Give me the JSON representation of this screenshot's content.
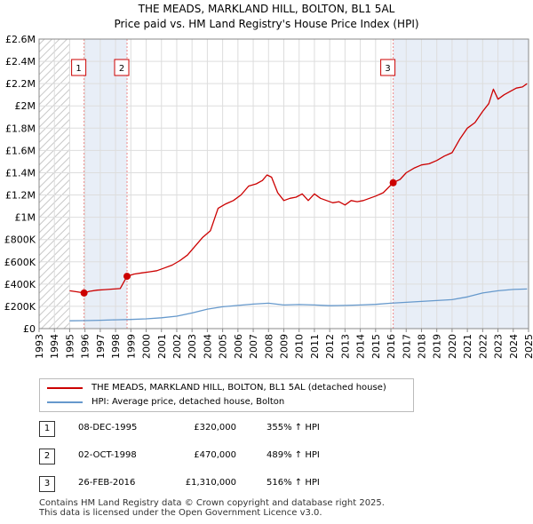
{
  "title_line1": "THE MEADS, MARKLAND HILL, BOLTON, BL1 5AL",
  "title_line2": "Price paid vs. HM Land Registry's House Price Index (HPI)",
  "legend": {
    "property_label": "THE MEADS, MARKLAND HILL, BOLTON, BL1 5AL (detached house)",
    "hpi_label": "HPI: Average price, detached house, Bolton"
  },
  "colors": {
    "property": "#cc0000",
    "hpi": "#6699cc",
    "shade": "#e8eef7",
    "hatch": "#c8c8c8"
  },
  "sales": [
    {
      "num": "1",
      "date": "08-DEC-1995",
      "price": "£320,000",
      "hpi": "355% ↑ HPI",
      "year": 1995.94,
      "value": 320000
    },
    {
      "num": "2",
      "date": "02-OCT-1998",
      "price": "£470,000",
      "hpi": "489% ↑ HPI",
      "year": 1998.75,
      "value": 470000
    },
    {
      "num": "3",
      "date": "26-FEB-2016",
      "price": "£1,310,000",
      "hpi": "516% ↑ HPI",
      "year": 2016.15,
      "value": 1310000
    }
  ],
  "footer_line1": "Contains HM Land Registry data © Crown copyright and database right 2025.",
  "footer_line2": "This data is licensed under the Open Government Licence v3.0.",
  "chart_data": {
    "type": "line",
    "xlim": [
      1993,
      2025
    ],
    "ylim": [
      0,
      2600000
    ],
    "x_ticks": [
      "1993",
      "1994",
      "1995",
      "1996",
      "1997",
      "1998",
      "1999",
      "2000",
      "2001",
      "2002",
      "2003",
      "2004",
      "2005",
      "2006",
      "2007",
      "2008",
      "2009",
      "2010",
      "2011",
      "2012",
      "2013",
      "2014",
      "2015",
      "2016",
      "2017",
      "2018",
      "2019",
      "2020",
      "2021",
      "2022",
      "2023",
      "2024",
      "2025"
    ],
    "y_ticks": [
      {
        "value": 0,
        "label": "£0"
      },
      {
        "value": 200000,
        "label": "£200K"
      },
      {
        "value": 400000,
        "label": "£400K"
      },
      {
        "value": 600000,
        "label": "£600K"
      },
      {
        "value": 800000,
        "label": "£800K"
      },
      {
        "value": 1000000,
        "label": "£1M"
      },
      {
        "value": 1200000,
        "label": "£1.2M"
      },
      {
        "value": 1400000,
        "label": "£1.4M"
      },
      {
        "value": 1600000,
        "label": "£1.6M"
      },
      {
        "value": 1800000,
        "label": "£1.8M"
      },
      {
        "value": 2000000,
        "label": "£2M"
      },
      {
        "value": 2200000,
        "label": "£2.2M"
      },
      {
        "value": 2400000,
        "label": "£2.4M"
      },
      {
        "value": 2600000,
        "label": "£2.6M"
      }
    ],
    "hatch_region": [
      1993,
      1995.0
    ],
    "shaded_regions": [
      [
        1995.94,
        1998.75
      ],
      [
        2016.15,
        2025
      ]
    ],
    "series": [
      {
        "name": "THE MEADS, MARKLAND HILL, BOLTON, BL1 5AL (detached house)",
        "x": [
          1995.0,
          1995.5,
          1995.94,
          1996.3,
          1996.8,
          1997.3,
          1997.8,
          1998.3,
          1998.75,
          1999.2,
          1999.7,
          2000.2,
          2000.7,
          2001.2,
          2001.7,
          2002.2,
          2002.7,
          2003.2,
          2003.7,
          2004.2,
          2004.7,
          2005.2,
          2005.7,
          2006.2,
          2006.7,
          2007.2,
          2007.6,
          2007.9,
          2008.2,
          2008.6,
          2009.0,
          2009.4,
          2009.8,
          2010.2,
          2010.6,
          2011.0,
          2011.4,
          2011.8,
          2012.2,
          2012.6,
          2013.0,
          2013.4,
          2013.8,
          2014.2,
          2014.6,
          2015.0,
          2015.5,
          2016.15,
          2016.6,
          2017.0,
          2017.5,
          2018.0,
          2018.5,
          2019.0,
          2019.5,
          2020.0,
          2020.5,
          2021.0,
          2021.5,
          2022.0,
          2022.4,
          2022.7,
          2023.0,
          2023.4,
          2023.8,
          2024.2,
          2024.6,
          2024.9
        ],
        "y": [
          340000,
          330000,
          320000,
          335000,
          345000,
          350000,
          355000,
          360000,
          470000,
          490000,
          500000,
          510000,
          520000,
          545000,
          570000,
          610000,
          660000,
          740000,
          820000,
          880000,
          1080000,
          1120000,
          1150000,
          1200000,
          1280000,
          1300000,
          1330000,
          1380000,
          1360000,
          1220000,
          1150000,
          1170000,
          1180000,
          1210000,
          1150000,
          1210000,
          1170000,
          1150000,
          1130000,
          1140000,
          1110000,
          1150000,
          1140000,
          1150000,
          1170000,
          1190000,
          1220000,
          1310000,
          1340000,
          1400000,
          1440000,
          1470000,
          1480000,
          1510000,
          1550000,
          1580000,
          1700000,
          1800000,
          1850000,
          1950000,
          2020000,
          2150000,
          2060000,
          2100000,
          2130000,
          2160000,
          2170000,
          2200000
        ]
      },
      {
        "name": "HPI: Average price, detached house, Bolton",
        "x": [
          1995.0,
          1996.0,
          1997.0,
          1998.0,
          1999.0,
          2000.0,
          2001.0,
          2002.0,
          2003.0,
          2004.0,
          2005.0,
          2006.0,
          2007.0,
          2008.0,
          2009.0,
          2010.0,
          2011.0,
          2012.0,
          2013.0,
          2014.0,
          2015.0,
          2016.0,
          2017.0,
          2018.0,
          2019.0,
          2020.0,
          2021.0,
          2022.0,
          2023.0,
          2024.0,
          2024.9
        ],
        "y": [
          70000,
          72000,
          75000,
          79000,
          82000,
          88000,
          97000,
          112000,
          140000,
          175000,
          196000,
          208000,
          220000,
          228000,
          212000,
          216000,
          212000,
          206000,
          208000,
          212000,
          218000,
          228000,
          236000,
          244000,
          252000,
          260000,
          285000,
          320000,
          340000,
          352000,
          356000
        ]
      }
    ]
  }
}
